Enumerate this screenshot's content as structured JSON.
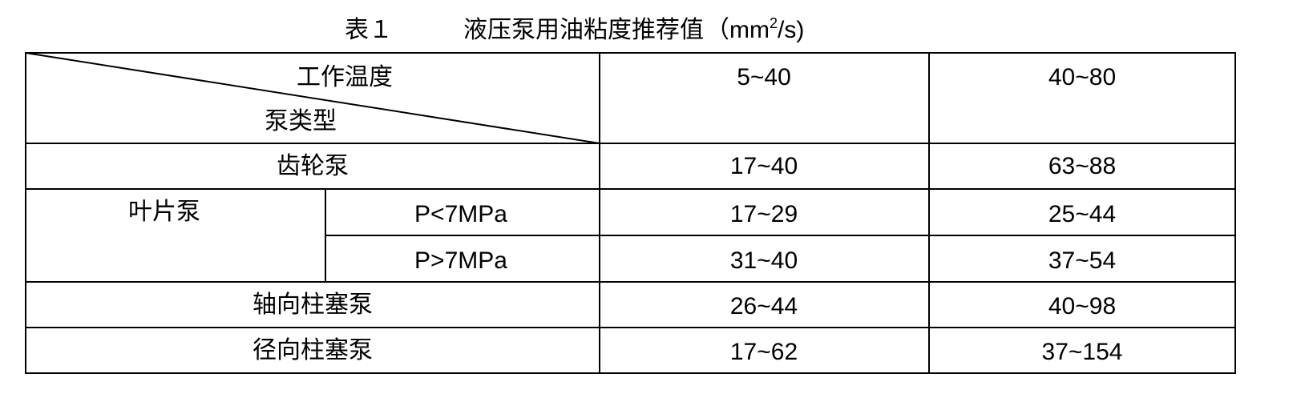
{
  "caption": {
    "label": "表１",
    "title": "液压泵用油粘度推荐值",
    "unit_prefix": "（mm",
    "unit_sup": "2",
    "unit_suffix": "/s)"
  },
  "table": {
    "header": {
      "corner_top": "工作温度",
      "corner_bottom": "泵类型",
      "columns": [
        "5~40",
        "40~80"
      ]
    },
    "rows": [
      {
        "type": "齿轮泵",
        "values": [
          "17~40",
          "63~88"
        ]
      },
      {
        "type": "叶片泵",
        "sub": "P<7MPa",
        "values": [
          "17~29",
          "25~44"
        ]
      },
      {
        "type": "叶片泵",
        "sub": "P>7MPa",
        "values": [
          "31~40",
          "37~54"
        ]
      },
      {
        "type": "轴向柱塞泵",
        "values": [
          "26~44",
          "40~98"
        ]
      },
      {
        "type": "径向柱塞泵",
        "values": [
          "17~62",
          "37~154"
        ]
      }
    ]
  }
}
